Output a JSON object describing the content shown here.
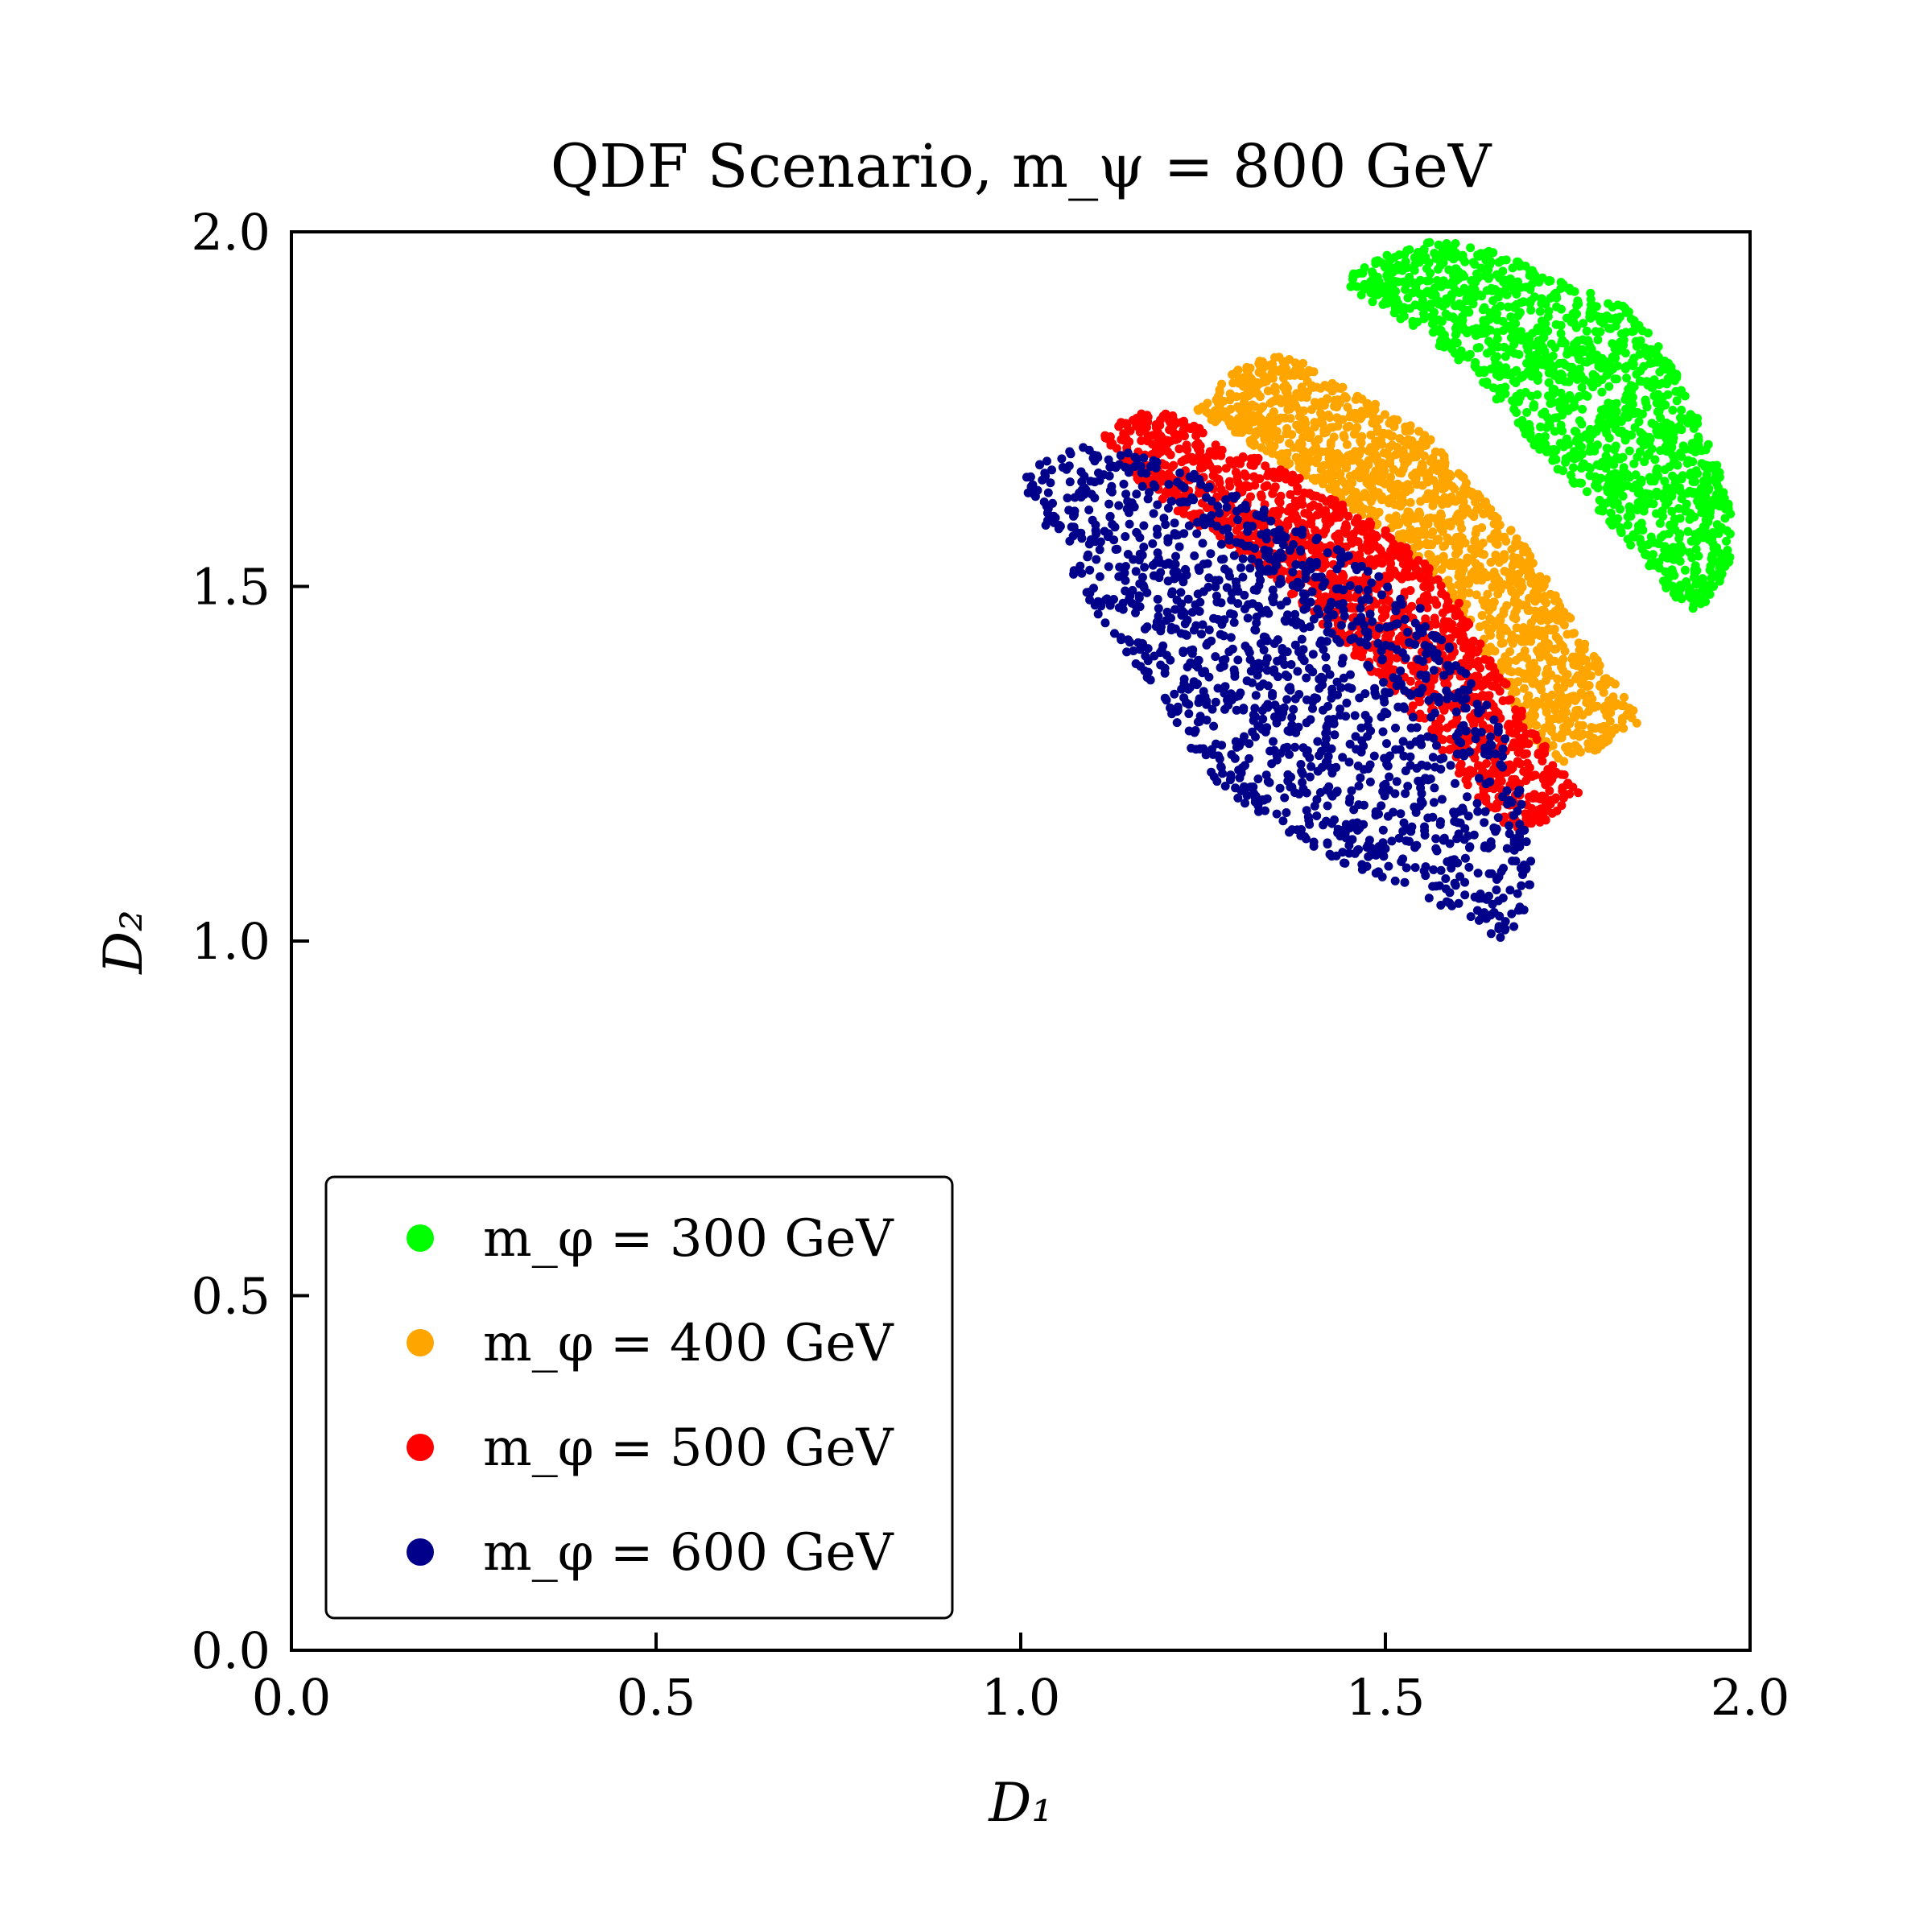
{
  "chart_data": {
    "type": "scatter",
    "title": "QDF Scenario, m_ψ = 800 GeV",
    "xlabel": "D₁",
    "ylabel": "D₂",
    "xlim": [
      0.0,
      2.0
    ],
    "ylim": [
      0.0,
      2.0
    ],
    "xticks": [
      "0.0",
      "0.5",
      "1.0",
      "1.5",
      "2.0"
    ],
    "yticks": [
      "0.0",
      "0.5",
      "1.0",
      "1.5",
      "2.0"
    ],
    "grid": false,
    "legend_position": "lower-left",
    "series": [
      {
        "name": "m_φ = 300 GeV",
        "color": "#00ff00",
        "region": [
          [
            1.44,
            1.93
          ],
          [
            1.5,
            1.97
          ],
          [
            1.57,
            1.99
          ],
          [
            1.66,
            1.97
          ],
          [
            1.74,
            1.93
          ],
          [
            1.84,
            1.89
          ],
          [
            1.9,
            1.8
          ],
          [
            1.95,
            1.69
          ],
          [
            1.98,
            1.6
          ],
          [
            1.97,
            1.52
          ],
          [
            1.93,
            1.46
          ],
          [
            1.89,
            1.49
          ],
          [
            1.84,
            1.55
          ],
          [
            1.78,
            1.62
          ],
          [
            1.7,
            1.7
          ],
          [
            1.63,
            1.79
          ],
          [
            1.56,
            1.85
          ],
          [
            1.49,
            1.89
          ]
        ]
      },
      {
        "name": "m_φ = 400 GeV",
        "color": "#ffa500",
        "region": [
          [
            1.24,
            1.75
          ],
          [
            1.3,
            1.81
          ],
          [
            1.36,
            1.83
          ],
          [
            1.43,
            1.79
          ],
          [
            1.5,
            1.75
          ],
          [
            1.56,
            1.71
          ],
          [
            1.62,
            1.64
          ],
          [
            1.69,
            1.56
          ],
          [
            1.74,
            1.48
          ],
          [
            1.78,
            1.41
          ],
          [
            1.82,
            1.36
          ],
          [
            1.85,
            1.31
          ],
          [
            1.81,
            1.28
          ],
          [
            1.75,
            1.25
          ],
          [
            1.7,
            1.28
          ],
          [
            1.66,
            1.36
          ],
          [
            1.61,
            1.45
          ],
          [
            1.55,
            1.53
          ],
          [
            1.48,
            1.59
          ],
          [
            1.4,
            1.65
          ],
          [
            1.33,
            1.69
          ],
          [
            1.28,
            1.72
          ]
        ]
      },
      {
        "name": "m_φ = 500 GeV",
        "color": "#ff0000",
        "region": [
          [
            1.11,
            1.71
          ],
          [
            1.16,
            1.75
          ],
          [
            1.22,
            1.74
          ],
          [
            1.28,
            1.7
          ],
          [
            1.34,
            1.68
          ],
          [
            1.42,
            1.63
          ],
          [
            1.5,
            1.58
          ],
          [
            1.57,
            1.52
          ],
          [
            1.62,
            1.45
          ],
          [
            1.66,
            1.38
          ],
          [
            1.7,
            1.3
          ],
          [
            1.74,
            1.25
          ],
          [
            1.77,
            1.2
          ],
          [
            1.72,
            1.17
          ],
          [
            1.67,
            1.15
          ],
          [
            1.62,
            1.2
          ],
          [
            1.57,
            1.28
          ],
          [
            1.5,
            1.36
          ],
          [
            1.42,
            1.44
          ],
          [
            1.34,
            1.52
          ],
          [
            1.25,
            1.58
          ],
          [
            1.17,
            1.64
          ]
        ]
      },
      {
        "name": "m_φ = 600 GeV",
        "color": "#00008b",
        "region": [
          [
            1.0,
            1.65
          ],
          [
            1.05,
            1.7
          ],
          [
            1.11,
            1.7
          ],
          [
            1.18,
            1.68
          ],
          [
            1.26,
            1.65
          ],
          [
            1.33,
            1.61
          ],
          [
            1.41,
            1.57
          ],
          [
            1.49,
            1.52
          ],
          [
            1.56,
            1.46
          ],
          [
            1.61,
            1.39
          ],
          [
            1.66,
            1.3
          ],
          [
            1.69,
            1.22
          ],
          [
            1.7,
            1.13
          ],
          [
            1.7,
            1.05
          ],
          [
            1.66,
            1.0
          ],
          [
            1.6,
            1.03
          ],
          [
            1.52,
            1.08
          ],
          [
            1.44,
            1.11
          ],
          [
            1.36,
            1.15
          ],
          [
            1.28,
            1.21
          ],
          [
            1.22,
            1.29
          ],
          [
            1.16,
            1.38
          ],
          [
            1.1,
            1.47
          ],
          [
            1.05,
            1.55
          ]
        ]
      }
    ]
  }
}
